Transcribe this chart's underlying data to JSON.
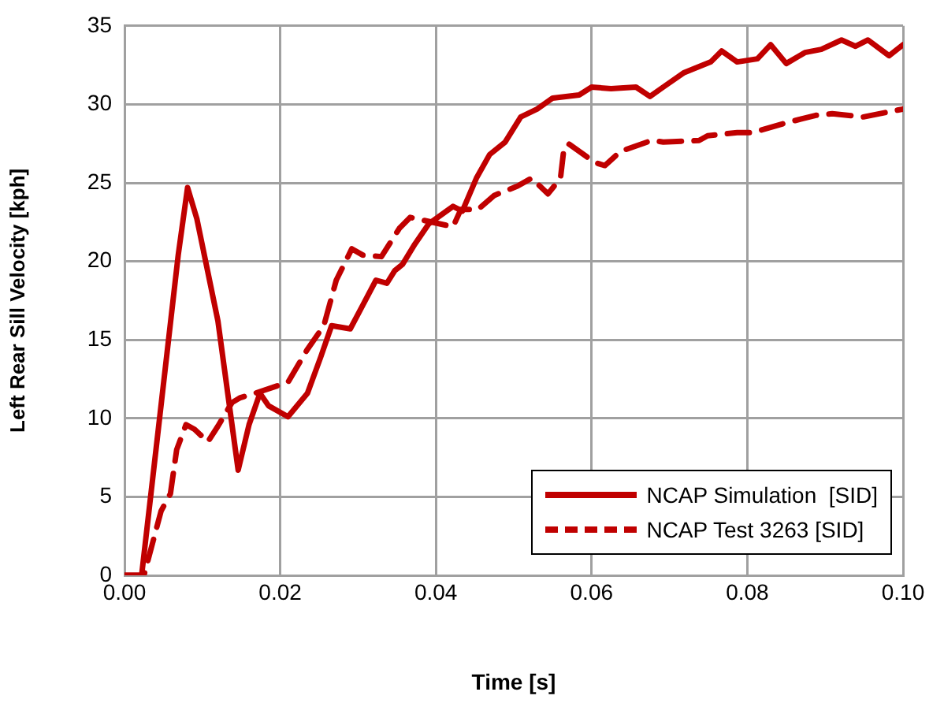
{
  "chart_data": {
    "type": "line",
    "xlabel": "Time [s]",
    "ylabel": "Left Rear Sill Velocity [kph]",
    "xlim": [
      0,
      0.1
    ],
    "xticks": [
      {
        "value": 0,
        "label": "0.00"
      },
      {
        "value": 0.02,
        "label": "0.02"
      },
      {
        "value": 0.04,
        "label": "0.04"
      },
      {
        "value": 0.06,
        "label": "0.06"
      },
      {
        "value": 0.08,
        "label": "0.08"
      },
      {
        "value": 0.1,
        "label": "0.10"
      }
    ],
    "ylim": [
      0,
      35
    ],
    "yticks": [
      0,
      5,
      10,
      15,
      20,
      25,
      30,
      35
    ],
    "grid": true,
    "legend": "bottom right",
    "marker": "none",
    "series": [
      {
        "name": "NCAP Simulation  [SID]",
        "color": "#c00000",
        "line_style": "solid",
        "x": [
          0,
          0.0022,
          0.0069,
          0.0081,
          0.0093,
          0.012,
          0.0146,
          0.016,
          0.0174,
          0.0185,
          0.021,
          0.0235,
          0.0252,
          0.0266,
          0.029,
          0.0306,
          0.0323,
          0.0337,
          0.0347,
          0.0357,
          0.0373,
          0.0391,
          0.0422,
          0.0434,
          0.0452,
          0.0469,
          0.0489,
          0.0509,
          0.053,
          0.055,
          0.0584,
          0.06,
          0.0625,
          0.0657,
          0.0675,
          0.0692,
          0.0718,
          0.0753,
          0.0767,
          0.0787,
          0.0813,
          0.083,
          0.085,
          0.0874,
          0.0895,
          0.0921,
          0.0939,
          0.0955,
          0.0982,
          0.1
        ],
        "values": [
          0,
          0,
          20.4,
          24.7,
          22.7,
          16.2,
          6.7,
          9.6,
          11.6,
          10.8,
          10.1,
          11.6,
          13.9,
          15.9,
          15.7,
          17.2,
          18.8,
          18.6,
          19.4,
          19.8,
          21.1,
          22.4,
          23.5,
          23.2,
          25.3,
          26.8,
          27.6,
          29.2,
          29.7,
          30.4,
          30.6,
          31.1,
          31,
          31.1,
          30.5,
          31.1,
          32,
          32.7,
          33.4,
          32.7,
          32.9,
          33.8,
          32.6,
          33.3,
          33.5,
          34.1,
          33.7,
          34.1,
          33.1,
          33.8
        ]
      },
      {
        "name": "NCAP Test 3263 [SID]",
        "color": "#c00000",
        "line_style": "dashed",
        "x": [
          0,
          0.0025,
          0.0047,
          0.0059,
          0.0067,
          0.0079,
          0.009,
          0.0107,
          0.012,
          0.0138,
          0.0148,
          0.0168,
          0.021,
          0.0235,
          0.0256,
          0.0272,
          0.0292,
          0.0306,
          0.033,
          0.0353,
          0.0367,
          0.0422,
          0.0432,
          0.0454,
          0.0475,
          0.0505,
          0.0523,
          0.0544,
          0.056,
          0.0564,
          0.057,
          0.0604,
          0.0617,
          0.0637,
          0.0677,
          0.0692,
          0.0738,
          0.0749,
          0.0787,
          0.0807,
          0.0848,
          0.0888,
          0.0909,
          0.0949,
          0.1
        ],
        "values": [
          0,
          0,
          4.1,
          5.2,
          8,
          9.6,
          9.3,
          8.5,
          9.5,
          11,
          11.3,
          11.6,
          12.3,
          14.4,
          15.9,
          18.8,
          20.8,
          20.4,
          20.3,
          22.1,
          22.8,
          22.2,
          23.3,
          23.3,
          24.2,
          24.8,
          25.3,
          24.3,
          25.3,
          27,
          27.5,
          26.3,
          26.1,
          27,
          27.7,
          27.6,
          27.7,
          28,
          28.2,
          28.2,
          28.8,
          29.3,
          29.4,
          29.2,
          29.7
        ]
      }
    ]
  }
}
